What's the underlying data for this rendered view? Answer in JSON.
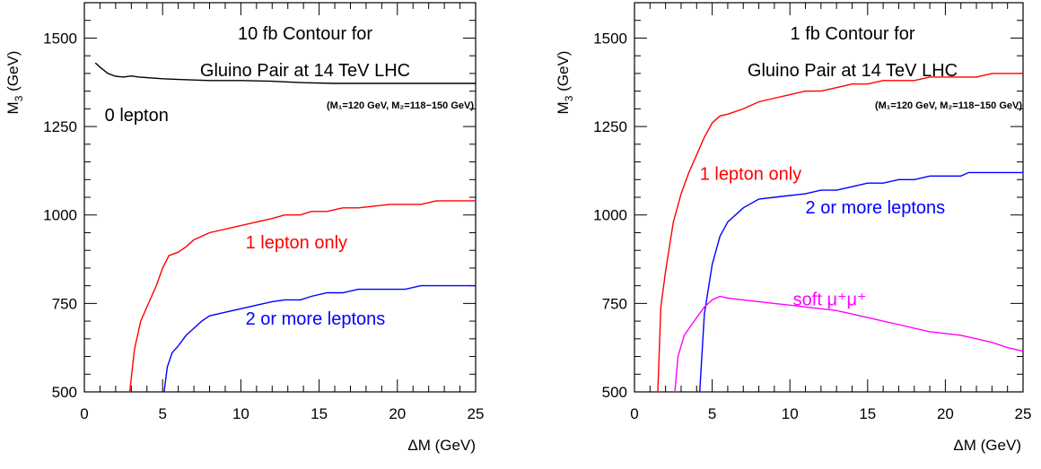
{
  "chart_data": [
    {
      "type": "line",
      "title_line1": "10 fb Contour for",
      "title_line2": "Gluino Pair at 14 TeV LHC",
      "note": "(M₁=120 GeV, M₂=118−150 GeV)",
      "xlabel": "ΔM (GeV)",
      "ylabel_main": "M",
      "ylabel_sub": "3",
      "ylabel_unit": " (GeV)",
      "xlim": [
        0,
        25
      ],
      "ylim": [
        500,
        1600
      ],
      "xticks": [
        0,
        5,
        10,
        15,
        20,
        25
      ],
      "yticks": [
        500,
        750,
        1000,
        1250,
        1500
      ],
      "grid": false,
      "series": [
        {
          "name": "0 lepton",
          "color": "#000000",
          "label_anchor": [
            1.3,
            1265
          ],
          "x": [
            0.7,
            1.0,
            1.5,
            2.0,
            2.5,
            3.0,
            3.5,
            4.0,
            5.0,
            6.0,
            8.0,
            10.0,
            12.0,
            13.0,
            14.0,
            16.0,
            18.0,
            20.0,
            22.0,
            25.0
          ],
          "y": [
            1430,
            1418,
            1400,
            1392,
            1390,
            1393,
            1390,
            1388,
            1385,
            1383,
            1380,
            1380,
            1378,
            1376,
            1374,
            1372,
            1372,
            1372,
            1372,
            1372
          ]
        },
        {
          "name": "1 lepton only",
          "color": "#ff0000",
          "label_anchor": [
            10.3,
            905
          ],
          "x": [
            2.9,
            3.2,
            3.6,
            4.2,
            4.6,
            5.0,
            5.4,
            6.0,
            6.5,
            7.0,
            8.0,
            9.0,
            10.0,
            11.0,
            12.0,
            12.8,
            13.8,
            14.5,
            15.5,
            16.5,
            17.5,
            18.5,
            19.5,
            20.5,
            21.5,
            22.5,
            23.5,
            25.0
          ],
          "y": [
            500,
            620,
            700,
            760,
            800,
            850,
            885,
            895,
            910,
            930,
            950,
            960,
            970,
            980,
            990,
            1000,
            1000,
            1010,
            1010,
            1020,
            1020,
            1025,
            1030,
            1030,
            1030,
            1040,
            1040,
            1040
          ]
        },
        {
          "name": "2 or more leptons",
          "color": "#0000ff",
          "label_anchor": [
            10.3,
            690
          ],
          "x": [
            5.1,
            5.3,
            5.6,
            6.0,
            6.5,
            7.0,
            7.5,
            8.0,
            9.0,
            10.0,
            11.0,
            12.0,
            12.8,
            13.8,
            14.5,
            15.5,
            16.5,
            17.5,
            18.5,
            19.5,
            20.5,
            21.5,
            22.5,
            23.5,
            25.0
          ],
          "y": [
            500,
            570,
            610,
            630,
            660,
            680,
            700,
            715,
            725,
            735,
            745,
            755,
            760,
            760,
            770,
            780,
            780,
            790,
            790,
            790,
            790,
            800,
            800,
            800,
            800
          ]
        }
      ]
    },
    {
      "type": "line",
      "title_line1": "1 fb Contour for",
      "title_line2": "Gluino Pair at 14 TeV LHC",
      "note": "(M₁=120 GeV, M₂=118−150 GeV)",
      "xlabel": "ΔM (GeV)",
      "ylabel_main": "M",
      "ylabel_sub": "3",
      "ylabel_unit": " (GeV)",
      "xlim": [
        0,
        25
      ],
      "ylim": [
        500,
        1600
      ],
      "xticks": [
        0,
        5,
        10,
        15,
        20,
        25
      ],
      "yticks": [
        500,
        750,
        1000,
        1250,
        1500
      ],
      "grid": false,
      "series": [
        {
          "name": "1 lepton only",
          "color": "#ff0000",
          "label_anchor": [
            4.2,
            1100
          ],
          "x": [
            1.5,
            1.7,
            2.0,
            2.5,
            3.0,
            3.5,
            4.0,
            4.5,
            5.0,
            5.5,
            6.0,
            7.0,
            8.0,
            9.0,
            10.0,
            11.0,
            12.0,
            13.0,
            14.0,
            15.0,
            16.0,
            17.0,
            18.0,
            19.0,
            20.0,
            21.0,
            22.0,
            23.0,
            24.0,
            25.0
          ],
          "y": [
            500,
            740,
            840,
            980,
            1060,
            1120,
            1170,
            1220,
            1260,
            1280,
            1285,
            1300,
            1320,
            1330,
            1340,
            1350,
            1350,
            1360,
            1370,
            1370,
            1380,
            1380,
            1380,
            1390,
            1390,
            1390,
            1390,
            1400,
            1400,
            1400
          ]
        },
        {
          "name": "2 or more leptons",
          "color": "#0000ff",
          "label_anchor": [
            11.0,
            1005
          ],
          "x": [
            4.2,
            4.5,
            5.0,
            5.5,
            6.0,
            7.0,
            8.0,
            9.0,
            10.0,
            11.0,
            12.0,
            13.0,
            14.0,
            15.0,
            16.0,
            17.0,
            18.0,
            19.0,
            20.0,
            21.0,
            21.5,
            22.0,
            23.0,
            24.0,
            25.0
          ],
          "y": [
            500,
            720,
            860,
            940,
            980,
            1020,
            1045,
            1050,
            1055,
            1060,
            1070,
            1070,
            1080,
            1090,
            1090,
            1100,
            1100,
            1110,
            1110,
            1110,
            1120,
            1120,
            1120,
            1120,
            1120
          ]
        },
        {
          "name": "soft μ⁺μ⁺",
          "color": "#ff00ff",
          "label_anchor": [
            10.2,
            745
          ],
          "x": [
            2.6,
            2.8,
            3.2,
            4.0,
            4.5,
            5.0,
            5.5,
            6.0,
            7.0,
            8.0,
            9.0,
            10.0,
            11.0,
            12.0,
            13.0,
            14.0,
            15.0,
            16.0,
            17.0,
            18.0,
            19.0,
            20.0,
            21.0,
            22.0,
            23.0,
            24.0,
            25.0
          ],
          "y": [
            500,
            600,
            660,
            710,
            740,
            760,
            770,
            765,
            760,
            755,
            750,
            745,
            740,
            735,
            730,
            720,
            710,
            700,
            690,
            680,
            670,
            665,
            660,
            650,
            640,
            625,
            615
          ]
        }
      ]
    }
  ]
}
